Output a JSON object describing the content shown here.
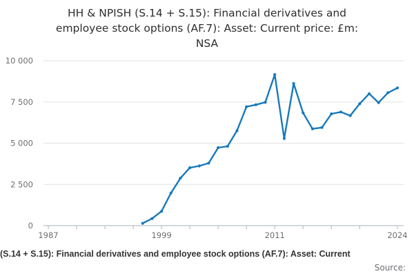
{
  "title": {
    "full": "HH & NPISH (S.14 + S.15): Financial derivatives and employee stock options (AF.7): Asset: Current price: £m: NSA",
    "lines": [
      "HH & NPISH (S.14 + S.15): Financial derivatives and",
      "employee stock options (AF.7): Asset: Current price: £m:",
      "NSA"
    ]
  },
  "footer": {
    "caption": "(S.14 + S.15): Financial derivatives and employee stock options (AF.7): Asset: Current",
    "source_label": "Source:"
  },
  "colors": {
    "line": "#1779ba",
    "grid": "#e2e2e2",
    "axis": "#b9c0c9",
    "tick_label": "#6e6e73",
    "title_text": "#2e2e2e"
  },
  "chart_data": {
    "type": "line",
    "title": "HH & NPISH (S.14 + S.15): Financial derivatives and employee stock options (AF.7): Asset: Current price: £m: NSA",
    "xlabel": "",
    "ylabel": "",
    "x": [
      1997,
      1998,
      1999,
      2000,
      2001,
      2002,
      2003,
      2004,
      2005,
      2006,
      2007,
      2008,
      2009,
      2010,
      2011,
      2012,
      2013,
      2014,
      2015,
      2016,
      2017,
      2018,
      2019,
      2020,
      2021,
      2022,
      2023,
      2024
    ],
    "values": [
      140,
      430,
      870,
      1980,
      2880,
      3510,
      3620,
      3790,
      4730,
      4810,
      5760,
      7210,
      7330,
      7480,
      9160,
      5280,
      8620,
      6840,
      5870,
      5950,
      6780,
      6890,
      6670,
      7390,
      8000,
      7460,
      8060,
      8350
    ],
    "x_axis": {
      "range": [
        1987,
        2024
      ],
      "ticks": [
        1987,
        1990,
        1993,
        1996,
        1999,
        2002,
        2005,
        2008,
        2011,
        2014,
        2017,
        2020,
        2024
      ],
      "labeled_ticks": [
        1987,
        1999,
        2011,
        2024
      ]
    },
    "y_axis": {
      "range": [
        0,
        10000
      ],
      "ticks": [
        0,
        2500,
        5000,
        7500,
        10000
      ],
      "tick_labels": [
        "0",
        "2 500",
        "5 000",
        "7 500",
        "10 000"
      ]
    },
    "grid": true,
    "legend": "none",
    "markers": true
  }
}
